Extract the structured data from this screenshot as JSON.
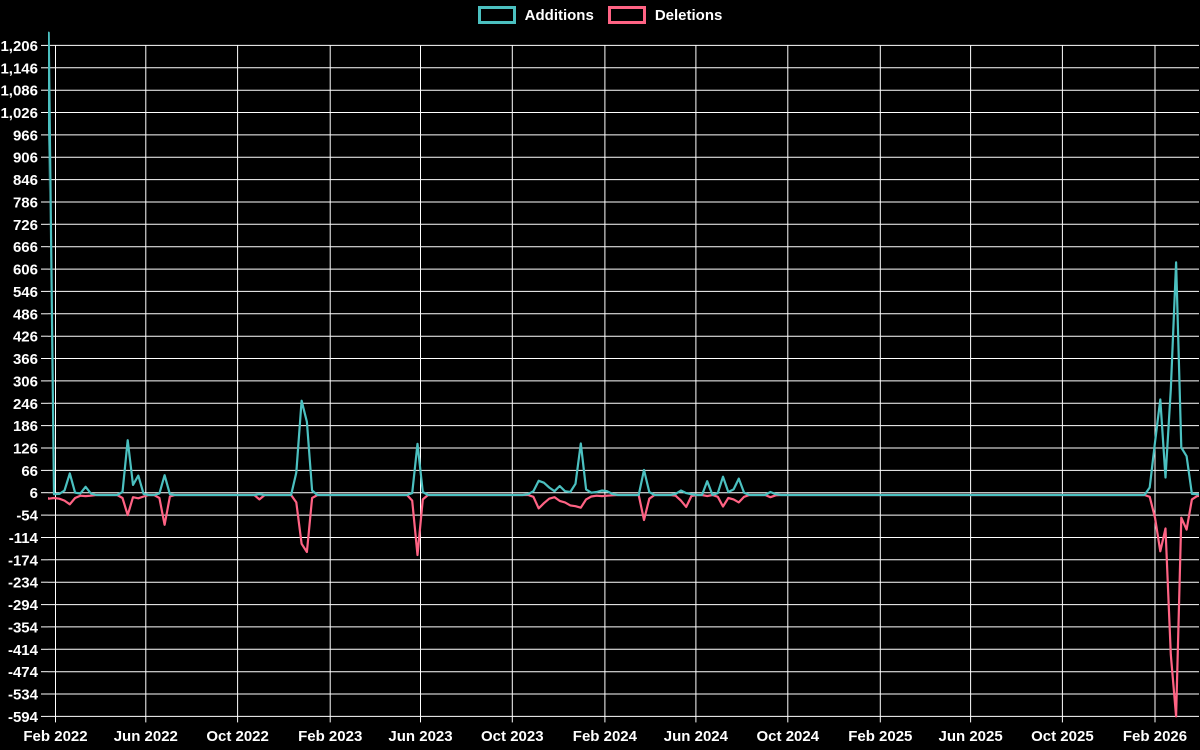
{
  "legend": {
    "items": [
      {
        "label": "Additions",
        "color": "#4bc0c0"
      },
      {
        "label": "Deletions",
        "color": "#ff6384"
      }
    ]
  },
  "chart_data": {
    "type": "line",
    "title": "",
    "xlabel": "",
    "ylabel": "",
    "legend_position": "top",
    "grid": true,
    "background_color": "#000000",
    "grid_color": "#ffffff",
    "text_color": "#ffffff",
    "x_start_date": "2022-01-16",
    "interval_days": 7,
    "weeks": 221,
    "default_value": 0,
    "ylim": [
      -594,
      1242
    ],
    "y_tick_values": [
      1206,
      1146,
      1086,
      1026,
      966,
      906,
      846,
      786,
      726,
      666,
      606,
      546,
      486,
      426,
      366,
      306,
      246,
      186,
      126,
      66,
      6,
      -54,
      -114,
      -174,
      -234,
      -294,
      -354,
      -414,
      -474,
      -534,
      -594
    ],
    "x_ticks": [
      {
        "label": "Feb 2022",
        "date": "2022-02-01"
      },
      {
        "label": "Jun 2022",
        "date": "2022-06-01"
      },
      {
        "label": "Oct 2022",
        "date": "2022-10-01"
      },
      {
        "label": "Feb 2023",
        "date": "2023-02-01"
      },
      {
        "label": "Jun 2023",
        "date": "2023-06-01"
      },
      {
        "label": "Oct 2023",
        "date": "2023-10-01"
      },
      {
        "label": "Feb 2024",
        "date": "2024-02-01"
      },
      {
        "label": "Jun 2024",
        "date": "2024-06-01"
      },
      {
        "label": "Oct 2024",
        "date": "2024-10-01"
      },
      {
        "label": "Feb 2025",
        "date": "2025-02-01"
      },
      {
        "label": "Jun 2025",
        "date": "2025-06-01"
      },
      {
        "label": "Oct 2025",
        "date": "2025-10-01"
      },
      {
        "label": "Feb 2026",
        "date": "2026-02-01"
      }
    ],
    "series": [
      {
        "name": "Additions",
        "color": "#4bc0c0"
      },
      {
        "name": "Deletions",
        "color": "#ff6384"
      }
    ],
    "points": [
      {
        "i": 1,
        "date": "2022-01-23",
        "a": 1240,
        "d": -10
      },
      {
        "i": 2,
        "date": "2022-01-30",
        "a": 2,
        "d": -8
      },
      {
        "i": 3,
        "date": "2022-02-06",
        "a": 3,
        "d": -10
      },
      {
        "i": 4,
        "date": "2022-02-13",
        "a": 12,
        "d": -15
      },
      {
        "i": 5,
        "date": "2022-02-20",
        "a": 58,
        "d": -25
      },
      {
        "i": 6,
        "date": "2022-02-27",
        "a": 6,
        "d": -8
      },
      {
        "i": 7,
        "date": "2022-03-06",
        "a": 4,
        "d": -2
      },
      {
        "i": 8,
        "date": "2022-03-13",
        "a": 22,
        "d": -3
      },
      {
        "i": 9,
        "date": "2022-03-20",
        "a": 4,
        "d": -2
      },
      {
        "i": 15,
        "date": "2022-05-01",
        "a": 8,
        "d": -8
      },
      {
        "i": 16,
        "date": "2022-05-08",
        "a": 147,
        "d": -54
      },
      {
        "i": 17,
        "date": "2022-05-15",
        "a": 27,
        "d": -6
      },
      {
        "i": 18,
        "date": "2022-05-22",
        "a": 52,
        "d": -9
      },
      {
        "i": 19,
        "date": "2022-05-29",
        "a": 3,
        "d": -4
      },
      {
        "i": 22,
        "date": "2022-06-19",
        "a": 4,
        "d": -8
      },
      {
        "i": 23,
        "date": "2022-06-26",
        "a": 53,
        "d": -80
      },
      {
        "i": 24,
        "date": "2022-07-03",
        "a": 2,
        "d": -4
      },
      {
        "i": 41,
        "date": "2022-10-30",
        "a": 2,
        "d": -12
      },
      {
        "i": 48,
        "date": "2022-12-18",
        "a": 60,
        "d": -20
      },
      {
        "i": 49,
        "date": "2022-12-25",
        "a": 253,
        "d": -131
      },
      {
        "i": 50,
        "date": "2023-01-01",
        "a": 196,
        "d": -153
      },
      {
        "i": 51,
        "date": "2023-01-08",
        "a": 12,
        "d": -8
      },
      {
        "i": 70,
        "date": "2023-05-21",
        "a": 5,
        "d": -15
      },
      {
        "i": 71,
        "date": "2023-05-28",
        "a": 137,
        "d": -161
      },
      {
        "i": 72,
        "date": "2023-06-04",
        "a": 8,
        "d": -12
      },
      {
        "i": 92,
        "date": "2023-10-22",
        "a": 2,
        "d": 0
      },
      {
        "i": 93,
        "date": "2023-10-29",
        "a": 10,
        "d": -5
      },
      {
        "i": 94,
        "date": "2023-11-05",
        "a": 38,
        "d": -36
      },
      {
        "i": 95,
        "date": "2023-11-12",
        "a": 33,
        "d": -22
      },
      {
        "i": 96,
        "date": "2023-11-19",
        "a": 20,
        "d": -10
      },
      {
        "i": 97,
        "date": "2023-11-26",
        "a": 10,
        "d": -6
      },
      {
        "i": 98,
        "date": "2023-12-03",
        "a": 24,
        "d": -16
      },
      {
        "i": 99,
        "date": "2023-12-10",
        "a": 10,
        "d": -20
      },
      {
        "i": 100,
        "date": "2023-12-17",
        "a": 8,
        "d": -28
      },
      {
        "i": 101,
        "date": "2023-12-24",
        "a": 30,
        "d": -30
      },
      {
        "i": 102,
        "date": "2023-12-31",
        "a": 138,
        "d": -34
      },
      {
        "i": 103,
        "date": "2024-01-07",
        "a": 15,
        "d": -12
      },
      {
        "i": 104,
        "date": "2024-01-14",
        "a": 6,
        "d": -4
      },
      {
        "i": 105,
        "date": "2024-01-21",
        "a": 8,
        "d": -2
      },
      {
        "i": 106,
        "date": "2024-01-28",
        "a": 12,
        "d": -3
      },
      {
        "i": 107,
        "date": "2024-02-04",
        "a": 10,
        "d": -2
      },
      {
        "i": 108,
        "date": "2024-02-11",
        "a": 3,
        "d": -1
      },
      {
        "i": 114,
        "date": "2024-03-24",
        "a": 67,
        "d": -67
      },
      {
        "i": 115,
        "date": "2024-03-31",
        "a": 8,
        "d": -10
      },
      {
        "i": 120,
        "date": "2024-05-05",
        "a": 3,
        "d": -2
      },
      {
        "i": 121,
        "date": "2024-05-12",
        "a": 12,
        "d": -15
      },
      {
        "i": 122,
        "date": "2024-05-19",
        "a": 5,
        "d": -32
      },
      {
        "i": 123,
        "date": "2024-05-26",
        "a": 2,
        "d": -3
      },
      {
        "i": 126,
        "date": "2024-06-16",
        "a": 37,
        "d": -3
      },
      {
        "i": 128,
        "date": "2024-06-30",
        "a": 5,
        "d": -5
      },
      {
        "i": 129,
        "date": "2024-07-07",
        "a": 49,
        "d": -31
      },
      {
        "i": 130,
        "date": "2024-07-14",
        "a": 8,
        "d": -8
      },
      {
        "i": 131,
        "date": "2024-07-21",
        "a": 15,
        "d": -12
      },
      {
        "i": 132,
        "date": "2024-07-28",
        "a": 44,
        "d": -20
      },
      {
        "i": 133,
        "date": "2024-08-04",
        "a": 6,
        "d": -5
      },
      {
        "i": 138,
        "date": "2024-09-08",
        "a": 8,
        "d": -6
      },
      {
        "i": 139,
        "date": "2024-09-15",
        "a": 2,
        "d": -1
      },
      {
        "i": 210,
        "date": "2026-01-25",
        "a": 20,
        "d": -5
      },
      {
        "i": 211,
        "date": "2026-02-01",
        "a": 141,
        "d": -61
      },
      {
        "i": 212,
        "date": "2026-02-08",
        "a": 256,
        "d": -151
      },
      {
        "i": 213,
        "date": "2026-02-15",
        "a": 47,
        "d": -90
      },
      {
        "i": 214,
        "date": "2026-02-22",
        "a": 283,
        "d": -428
      },
      {
        "i": 215,
        "date": "2026-03-01",
        "a": 624,
        "d": -594
      },
      {
        "i": 216,
        "date": "2026-03-08",
        "a": 127,
        "d": -61
      },
      {
        "i": 217,
        "date": "2026-03-15",
        "a": 104,
        "d": -93
      },
      {
        "i": 218,
        "date": "2026-03-22",
        "a": 3,
        "d": -12
      },
      {
        "i": 219,
        "date": "2026-03-29",
        "a": 2,
        "d": -3
      },
      {
        "i": 220,
        "date": "2026-04-05",
        "a": 0,
        "d": -2
      }
    ]
  }
}
